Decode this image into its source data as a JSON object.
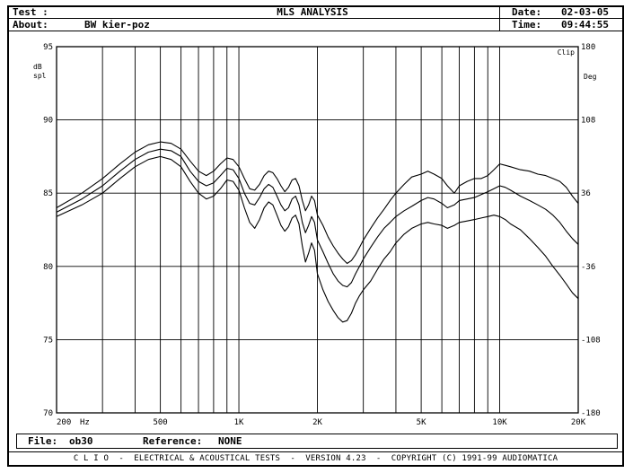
{
  "header": {
    "test_label": "Test :",
    "about_label": "About:",
    "about_value": "BW kier-poz",
    "title": "MLS ANALYSIS",
    "date_label": "Date:",
    "date_value": "02-03-05",
    "time_label": "Time:",
    "time_value": "09:44:55"
  },
  "footer": {
    "file_label": "File:",
    "file_value": "ob30",
    "reference_label": "Reference:",
    "reference_value": "NONE",
    "credits": "C L I O  -  ELECTRICAL & ACOUSTICAL TESTS  -  VERSION 4.23  -  COPYRIGHT (C) 1991-99 AUDIOMATICA"
  },
  "chart_data": {
    "type": "line",
    "x_scale": "log",
    "xlim": [
      200,
      20000
    ],
    "ylim": [
      70,
      95
    ],
    "y2lim": [
      -180,
      180
    ],
    "ylabel_lines": [
      "dB",
      "spl"
    ],
    "y2label": "Deg",
    "clip_label": "Clip",
    "x_unit_label": "Hz",
    "x_ticks": [
      {
        "value": 200,
        "label": "200"
      },
      {
        "value": 500,
        "label": "500"
      },
      {
        "value": 1000,
        "label": "1K"
      },
      {
        "value": 2000,
        "label": "2K"
      },
      {
        "value": 5000,
        "label": "5K"
      },
      {
        "value": 10000,
        "label": "10K"
      },
      {
        "value": 20000,
        "label": "20K"
      }
    ],
    "x_gridlines": [
      300,
      400,
      500,
      600,
      700,
      800,
      900,
      1000,
      2000,
      3000,
      4000,
      5000,
      6000,
      7000,
      8000,
      9000,
      10000
    ],
    "y_ticks": [
      95,
      90,
      85,
      80,
      75,
      70
    ],
    "y2_ticks": [
      180,
      108,
      36,
      -36,
      -108,
      -180
    ],
    "grid": true,
    "series": [
      {
        "values": [
          [
            200,
            84.0
          ],
          [
            250,
            85.0
          ],
          [
            300,
            86.0
          ],
          [
            350,
            87.0
          ],
          [
            400,
            87.8
          ],
          [
            450,
            88.3
          ],
          [
            500,
            88.5
          ],
          [
            550,
            88.4
          ],
          [
            600,
            88.0
          ],
          [
            650,
            87.2
          ],
          [
            700,
            86.5
          ],
          [
            750,
            86.2
          ],
          [
            800,
            86.5
          ],
          [
            850,
            87.0
          ],
          [
            900,
            87.4
          ],
          [
            950,
            87.3
          ],
          [
            1000,
            86.8
          ],
          [
            1050,
            86.0
          ],
          [
            1100,
            85.3
          ],
          [
            1150,
            85.2
          ],
          [
            1200,
            85.6
          ],
          [
            1250,
            86.2
          ],
          [
            1300,
            86.5
          ],
          [
            1350,
            86.4
          ],
          [
            1400,
            86.0
          ],
          [
            1450,
            85.5
          ],
          [
            1500,
            85.1
          ],
          [
            1550,
            85.4
          ],
          [
            1600,
            85.9
          ],
          [
            1650,
            86.0
          ],
          [
            1700,
            85.5
          ],
          [
            1750,
            84.5
          ],
          [
            1800,
            83.8
          ],
          [
            1850,
            84.2
          ],
          [
            1900,
            84.8
          ],
          [
            1950,
            84.5
          ],
          [
            2000,
            83.5
          ],
          [
            2100,
            82.8
          ],
          [
            2200,
            82.0
          ],
          [
            2300,
            81.4
          ],
          [
            2400,
            80.9
          ],
          [
            2500,
            80.5
          ],
          [
            2600,
            80.2
          ],
          [
            2700,
            80.4
          ],
          [
            2800,
            80.8
          ],
          [
            2900,
            81.3
          ],
          [
            3000,
            81.8
          ],
          [
            3200,
            82.6
          ],
          [
            3400,
            83.3
          ],
          [
            3600,
            83.9
          ],
          [
            3800,
            84.5
          ],
          [
            4000,
            85.0
          ],
          [
            4300,
            85.6
          ],
          [
            4600,
            86.1
          ],
          [
            5000,
            86.3
          ],
          [
            5300,
            86.5
          ],
          [
            5600,
            86.3
          ],
          [
            6000,
            86.0
          ],
          [
            6300,
            85.5
          ],
          [
            6700,
            85.0
          ],
          [
            7000,
            85.5
          ],
          [
            7500,
            85.8
          ],
          [
            8000,
            86.0
          ],
          [
            8500,
            86.0
          ],
          [
            9000,
            86.2
          ],
          [
            9500,
            86.6
          ],
          [
            10000,
            87.0
          ],
          [
            10500,
            86.9
          ],
          [
            11000,
            86.8
          ],
          [
            12000,
            86.6
          ],
          [
            13000,
            86.5
          ],
          [
            14000,
            86.3
          ],
          [
            15000,
            86.2
          ],
          [
            16000,
            86.0
          ],
          [
            17000,
            85.8
          ],
          [
            18000,
            85.4
          ],
          [
            19000,
            84.8
          ],
          [
            20000,
            84.3
          ]
        ]
      },
      {
        "values": [
          [
            200,
            83.7
          ],
          [
            250,
            84.6
          ],
          [
            300,
            85.5
          ],
          [
            350,
            86.5
          ],
          [
            400,
            87.3
          ],
          [
            450,
            87.8
          ],
          [
            500,
            88.0
          ],
          [
            550,
            87.9
          ],
          [
            600,
            87.5
          ],
          [
            650,
            86.5
          ],
          [
            700,
            85.8
          ],
          [
            750,
            85.5
          ],
          [
            800,
            85.7
          ],
          [
            850,
            86.2
          ],
          [
            900,
            86.7
          ],
          [
            950,
            86.6
          ],
          [
            1000,
            86.0
          ],
          [
            1050,
            85.0
          ],
          [
            1100,
            84.3
          ],
          [
            1150,
            84.2
          ],
          [
            1200,
            84.7
          ],
          [
            1250,
            85.3
          ],
          [
            1300,
            85.6
          ],
          [
            1350,
            85.4
          ],
          [
            1400,
            84.8
          ],
          [
            1450,
            84.2
          ],
          [
            1500,
            83.8
          ],
          [
            1550,
            84.0
          ],
          [
            1600,
            84.6
          ],
          [
            1650,
            84.8
          ],
          [
            1700,
            84.2
          ],
          [
            1750,
            83.0
          ],
          [
            1800,
            82.3
          ],
          [
            1850,
            82.8
          ],
          [
            1900,
            83.4
          ],
          [
            1950,
            83.0
          ],
          [
            2000,
            81.8
          ],
          [
            2100,
            81.0
          ],
          [
            2200,
            80.2
          ],
          [
            2300,
            79.5
          ],
          [
            2400,
            79.0
          ],
          [
            2500,
            78.7
          ],
          [
            2600,
            78.6
          ],
          [
            2700,
            78.9
          ],
          [
            2800,
            79.5
          ],
          [
            2900,
            80.0
          ],
          [
            3000,
            80.5
          ],
          [
            3200,
            81.3
          ],
          [
            3400,
            82.0
          ],
          [
            3600,
            82.6
          ],
          [
            3800,
            83.0
          ],
          [
            4000,
            83.4
          ],
          [
            4300,
            83.8
          ],
          [
            4600,
            84.1
          ],
          [
            5000,
            84.5
          ],
          [
            5300,
            84.7
          ],
          [
            5600,
            84.6
          ],
          [
            6000,
            84.3
          ],
          [
            6300,
            84.0
          ],
          [
            6700,
            84.2
          ],
          [
            7000,
            84.5
          ],
          [
            7500,
            84.6
          ],
          [
            8000,
            84.7
          ],
          [
            8500,
            84.9
          ],
          [
            9000,
            85.1
          ],
          [
            9500,
            85.3
          ],
          [
            10000,
            85.5
          ],
          [
            10500,
            85.4
          ],
          [
            11000,
            85.2
          ],
          [
            12000,
            84.8
          ],
          [
            13000,
            84.5
          ],
          [
            14000,
            84.2
          ],
          [
            15000,
            83.9
          ],
          [
            16000,
            83.5
          ],
          [
            17000,
            83.0
          ],
          [
            18000,
            82.4
          ],
          [
            19000,
            81.9
          ],
          [
            20000,
            81.5
          ]
        ]
      },
      {
        "values": [
          [
            200,
            83.4
          ],
          [
            250,
            84.2
          ],
          [
            300,
            85.0
          ],
          [
            350,
            86.0
          ],
          [
            400,
            86.8
          ],
          [
            450,
            87.3
          ],
          [
            500,
            87.5
          ],
          [
            550,
            87.3
          ],
          [
            600,
            86.8
          ],
          [
            650,
            85.8
          ],
          [
            700,
            85.0
          ],
          [
            750,
            84.6
          ],
          [
            800,
            84.8
          ],
          [
            850,
            85.3
          ],
          [
            900,
            85.9
          ],
          [
            950,
            85.8
          ],
          [
            1000,
            85.2
          ],
          [
            1050,
            84.0
          ],
          [
            1100,
            83.0
          ],
          [
            1150,
            82.6
          ],
          [
            1200,
            83.2
          ],
          [
            1250,
            84.0
          ],
          [
            1300,
            84.4
          ],
          [
            1350,
            84.2
          ],
          [
            1400,
            83.5
          ],
          [
            1450,
            82.8
          ],
          [
            1500,
            82.4
          ],
          [
            1550,
            82.7
          ],
          [
            1600,
            83.3
          ],
          [
            1650,
            83.5
          ],
          [
            1700,
            82.9
          ],
          [
            1750,
            81.4
          ],
          [
            1800,
            80.3
          ],
          [
            1850,
            80.9
          ],
          [
            1900,
            81.6
          ],
          [
            1950,
            81.1
          ],
          [
            2000,
            79.5
          ],
          [
            2100,
            78.4
          ],
          [
            2200,
            77.6
          ],
          [
            2300,
            77.0
          ],
          [
            2400,
            76.5
          ],
          [
            2500,
            76.2
          ],
          [
            2600,
            76.3
          ],
          [
            2700,
            76.8
          ],
          [
            2800,
            77.5
          ],
          [
            2900,
            78.0
          ],
          [
            3000,
            78.4
          ],
          [
            3200,
            79.0
          ],
          [
            3400,
            79.8
          ],
          [
            3600,
            80.5
          ],
          [
            3800,
            81.0
          ],
          [
            4000,
            81.6
          ],
          [
            4300,
            82.2
          ],
          [
            4600,
            82.6
          ],
          [
            5000,
            82.9
          ],
          [
            5300,
            83.0
          ],
          [
            5600,
            82.9
          ],
          [
            6000,
            82.8
          ],
          [
            6300,
            82.6
          ],
          [
            6700,
            82.8
          ],
          [
            7000,
            83.0
          ],
          [
            7500,
            83.1
          ],
          [
            8000,
            83.2
          ],
          [
            8500,
            83.3
          ],
          [
            9000,
            83.4
          ],
          [
            9500,
            83.5
          ],
          [
            10000,
            83.4
          ],
          [
            10500,
            83.2
          ],
          [
            11000,
            82.9
          ],
          [
            12000,
            82.5
          ],
          [
            13000,
            81.9
          ],
          [
            14000,
            81.3
          ],
          [
            15000,
            80.7
          ],
          [
            16000,
            80.0
          ],
          [
            17000,
            79.4
          ],
          [
            18000,
            78.8
          ],
          [
            19000,
            78.2
          ],
          [
            20000,
            77.8
          ]
        ]
      }
    ]
  }
}
